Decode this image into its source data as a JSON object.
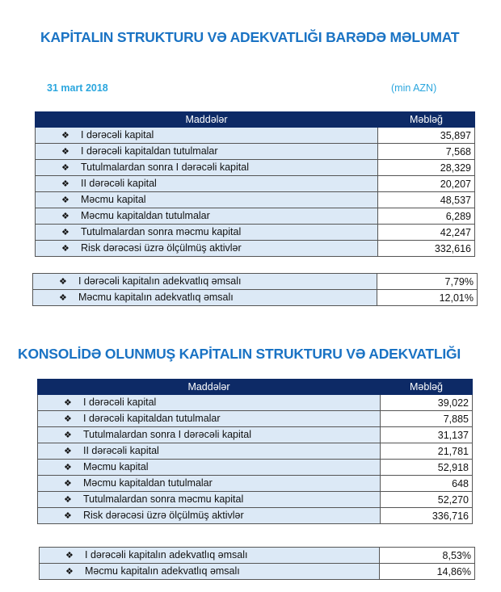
{
  "section1": {
    "title": "KAPİTALIN STRUKTURU VƏ ADEKVATLIĞI BARƏDƏ MƏLUMAT",
    "date": "31 mart 2018",
    "unit": "(min AZN)",
    "headers": [
      "Maddələr",
      "Məbləğ"
    ],
    "rows": [
      {
        "label": "I dərəcəli kapital",
        "value": "35,897"
      },
      {
        "label": "I dərəcəli kapitaldan tutulmalar",
        "value": "7,568"
      },
      {
        "label": "Tutulmalardan  sonra I dərəcəli kapital",
        "value": "28,329"
      },
      {
        "label": "II dərəcəli kapital",
        "value": "20,207"
      },
      {
        "label": "Məcmu kapital",
        "value": "48,537"
      },
      {
        "label": "Məcmu kapitaldan tutulmalar",
        "value": "6,289"
      },
      {
        "label": "Tutulmalardan sonra məcmu kapital",
        "value": "42,247"
      },
      {
        "label": "Risk dərəcəsi üzrə ölçülmüş aktivlər",
        "value": "332,616"
      }
    ],
    "ratios": [
      {
        "label": "I dərəcəli kapitalın adekvatlıq əmsalı",
        "value": "7,79%"
      },
      {
        "label": "Məcmu kapitalın adekvatlıq əmsalı",
        "value": "12,01%"
      }
    ]
  },
  "section2": {
    "title": "KONSOLİDƏ OLUNMUŞ KAPİTALIN STRUKTURU VƏ ADEKVATLIĞI",
    "headers": [
      "Maddələr",
      "Məbləğ"
    ],
    "rows": [
      {
        "label": "I dərəcəli kapital",
        "value": "39,022"
      },
      {
        "label": "I dərəcəli kapitaldan tutulmalar",
        "value": "7,885"
      },
      {
        "label": "Tutulmalardan  sonra I dərəcəli kapital",
        "value": "31,137"
      },
      {
        "label": "II dərəcəli kapital",
        "value": "21,781"
      },
      {
        "label": "Məcmu kapital",
        "value": "52,918"
      },
      {
        "label": "Məcmu kapitaldan tutulmalar",
        "value": "648"
      },
      {
        "label": "Tutulmalardan sonra məcmu kapital",
        "value": "52,270"
      },
      {
        "label": "Risk dərəcəsi üzrə ölçülmüş aktivlər",
        "value": "336,716"
      }
    ],
    "ratios": [
      {
        "label": "I dərəcəli kapitalın adekvatlıq əmsalı",
        "value": "8,53%"
      },
      {
        "label": "Məcmu kapitalın adekvatlıq əmsalı",
        "value": "14,86%"
      }
    ]
  },
  "bullet": "❖",
  "colors": {
    "title": "#1a73c4",
    "date": "#2aa6de",
    "header_bg": "#0d2a66",
    "row_bg": "#dce9f6"
  }
}
